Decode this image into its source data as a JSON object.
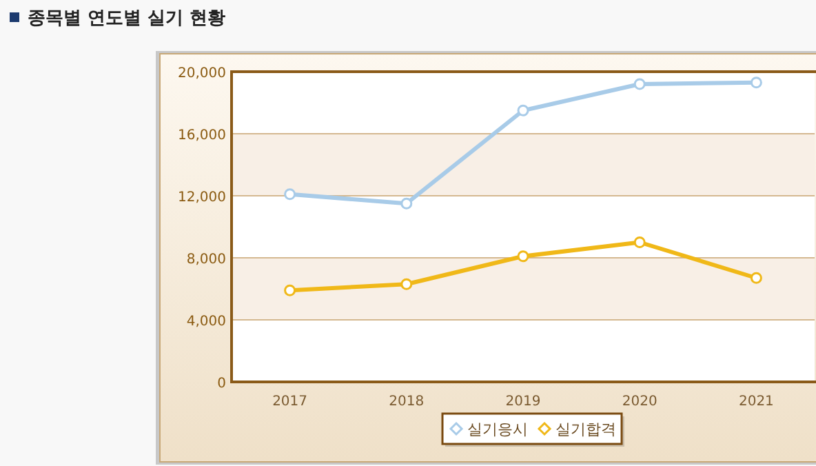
{
  "chart_data": {
    "type": "line",
    "title": "종목별 연도별 실기 현황",
    "categories": [
      "2017",
      "2018",
      "2019",
      "2020",
      "2021"
    ],
    "series": [
      {
        "name": "실기응시",
        "color": "#a8cbe8",
        "values": [
          12100,
          11500,
          17500,
          19200,
          19300
        ]
      },
      {
        "name": "실기합격",
        "color": "#f0b818",
        "values": [
          5900,
          6300,
          8100,
          9000,
          6700
        ]
      }
    ],
    "ylim": [
      0,
      20000
    ],
    "yticks": [
      {
        "value": 0,
        "label": "0"
      },
      {
        "value": 4000,
        "label": "4,000"
      },
      {
        "value": 8000,
        "label": "8,000"
      },
      {
        "value": 12000,
        "label": "12,000"
      },
      {
        "value": 16000,
        "label": "16,000"
      },
      {
        "value": 20000,
        "label": "20,000"
      }
    ],
    "grid": "y",
    "legend": "bottom",
    "marker": "circle",
    "line_style": "solid"
  }
}
